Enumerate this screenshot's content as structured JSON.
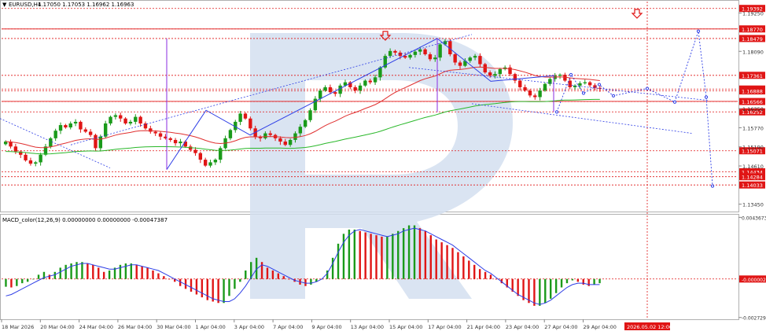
{
  "window": {
    "symbol_label": "EURUSD,H4",
    "ohlc_text": "1.17050 1.17053 1.16962 1.16963",
    "indicator_label": "MACD_color(12,26,9) 0.00000000 0.00000000 -0.00047387"
  },
  "colors": {
    "bull": "#1a9a1a",
    "bear": "#e01515",
    "ma_fast": "#e03030",
    "ma_slow": "#2ab82a",
    "trend": "#2e3ee6",
    "level": "#e01515",
    "badge": "#e01515",
    "watermark": "#d4dff0"
  },
  "chart_data": [
    {
      "type": "candlestick",
      "title": "EURUSD,H4",
      "x_tick_labels": [
        "18 Mar 2026",
        "20 Mar 04:00",
        "24 Mar 04:00",
        "26 Mar 04:00",
        "30 Mar 04:00",
        "1 Apr 04:00",
        "3 Apr 04:00",
        "7 Apr 04:00",
        "9 Apr 04:00",
        "13 Apr 04:00",
        "15 Apr 04:00",
        "17 Apr 04:00",
        "21 Apr 04:00",
        "23 Apr 04:00",
        "27 Apr 04:00",
        "29 Apr 04:00"
      ],
      "forecast_date_label": "2026.05.02 12:00",
      "ylim": [
        1.1325,
        1.196
      ],
      "y_tick_labels": [
        "1.19250",
        "1.18090",
        "1.16350",
        "1.15770",
        "1.15190",
        "1.14610",
        "1.13450"
      ],
      "price_levels": [
        "1.19392",
        "1.18770",
        "1.18479",
        "1.17361",
        "1.16945",
        "1.16888",
        "1.16566",
        "1.16252",
        "1.15071",
        "1.14434",
        "1.14284",
        "1.14033"
      ],
      "closes": [
        1.1535,
        1.152,
        1.1505,
        1.1495,
        1.1478,
        1.1468,
        1.1472,
        1.1495,
        1.152,
        1.1545,
        1.1568,
        1.1585,
        1.1578,
        1.159,
        1.1595,
        1.1572,
        1.1565,
        1.1555,
        1.1515,
        1.155,
        1.159,
        1.161,
        1.1615,
        1.1605,
        1.159,
        1.1595,
        1.161,
        1.159,
        1.1575,
        1.1565,
        1.156,
        1.155,
        1.1545,
        1.154,
        1.153,
        1.1535,
        1.152,
        1.151,
        1.15,
        1.148,
        1.1462,
        1.1472,
        1.148,
        1.1515,
        1.1545,
        1.157,
        1.1595,
        1.162,
        1.1605,
        1.1575,
        1.155,
        1.1545,
        1.156,
        1.1555,
        1.1545,
        1.1535,
        1.1525,
        1.154,
        1.156,
        1.158,
        1.16,
        1.163,
        1.1665,
        1.169,
        1.17,
        1.1685,
        1.168,
        1.1705,
        1.1715,
        1.17,
        1.169,
        1.1705,
        1.172,
        1.1715,
        1.173,
        1.176,
        1.1795,
        1.181,
        1.1805,
        1.1795,
        1.179,
        1.1798,
        1.1808,
        1.1815,
        1.18,
        1.1785,
        1.179,
        1.183,
        1.184,
        1.18,
        1.1775,
        1.1765,
        1.178,
        1.179,
        1.1795,
        1.177,
        1.1745,
        1.1735,
        1.174,
        1.1755,
        1.176,
        1.174,
        1.172,
        1.17,
        1.169,
        1.1675,
        1.167,
        1.169,
        1.171,
        1.1725,
        1.1735,
        1.1738,
        1.172,
        1.17,
        1.1705,
        1.1712,
        1.1715,
        1.1706,
        1.1698,
        1.1696
      ],
      "forecast_path": [
        1.1625,
        1.1738,
        1.1682,
        1.1708,
        1.1674,
        1.1696,
        1.1655,
        1.187,
        1.167,
        1.14
      ],
      "macd": {
        "values": [
          -0.00055,
          -0.0006,
          -0.0005,
          -0.0003,
          -0.0002,
          0.0,
          0.0003,
          0.0005,
          0.0003,
          0.0005,
          0.0008,
          0.001,
          0.0011,
          0.0012,
          0.0012,
          0.0011,
          0.001,
          0.0008,
          0.0005,
          0.0006,
          0.0008,
          0.001,
          0.0011,
          0.0011,
          0.001,
          0.0009,
          0.0008,
          0.0006,
          0.0004,
          0.0002,
          0.0,
          -0.0002,
          -0.0005,
          -0.0007,
          -0.0009,
          -0.0011,
          -0.0013,
          -0.0015,
          -0.0016,
          -0.0017,
          -0.0017,
          -0.0012,
          -0.0007,
          -0.0002,
          0.0006,
          0.0012,
          0.0015,
          0.0012,
          0.0008,
          0.0006,
          0.0004,
          0.0002,
          0.0,
          -0.0002,
          -0.0004,
          -0.0005,
          -0.0004,
          -0.0002,
          0.0,
          0.0006,
          0.0015,
          0.0025,
          0.0032,
          0.0035,
          0.0035,
          0.0034,
          0.0033,
          0.0032,
          0.0031,
          0.003,
          0.003,
          0.0032,
          0.0034,
          0.0036,
          0.0038,
          0.0038,
          0.0036,
          0.0034,
          0.0031,
          0.0028,
          0.0026,
          0.0024,
          0.0022,
          0.0019,
          0.0016,
          0.0013,
          0.001,
          0.0007,
          0.0005,
          0.0003,
          0.0,
          -0.0003,
          -0.0006,
          -0.0009,
          -0.0012,
          -0.0015,
          -0.0017,
          -0.0019,
          -0.0019,
          -0.0017,
          -0.0014,
          -0.001,
          -0.0006,
          -0.0003,
          -0.0001,
          -0.0002,
          -0.0004,
          -0.0005,
          -0.0004,
          -0.0003
        ],
        "signal": [
          -0.0012,
          -0.0011,
          -0.0009,
          -0.0007,
          -0.0005,
          -0.0003,
          -0.0001,
          0.0001,
          0.0002,
          0.0003,
          0.0005,
          0.0007,
          0.0009,
          0.001,
          0.0011,
          0.0011,
          0.001,
          0.0009,
          0.0008,
          0.0007,
          0.0007,
          0.0008,
          0.0009,
          0.001,
          0.001,
          0.0009,
          0.0008,
          0.0007,
          0.0006,
          0.0004,
          0.0002,
          0.0,
          -0.0002,
          -0.0004,
          -0.0006,
          -0.0008,
          -0.001,
          -0.0012,
          -0.0014,
          -0.0015,
          -0.0016,
          -0.0016,
          -0.0014,
          -0.001,
          -0.0005,
          0.0001,
          0.0007,
          0.001,
          0.0009,
          0.0007,
          0.0005,
          0.0003,
          0.0001,
          -0.0001,
          -0.0002,
          -0.0003,
          -0.0003,
          -0.0002,
          0.0,
          0.0004,
          0.0011,
          0.0019,
          0.0026,
          0.0031,
          0.0034,
          0.0035,
          0.0034,
          0.0033,
          0.0032,
          0.0031,
          0.003,
          0.0031,
          0.0032,
          0.0034,
          0.0035,
          0.0036,
          0.0035,
          0.0034,
          0.0032,
          0.003,
          0.0028,
          0.0026,
          0.0024,
          0.0021,
          0.0018,
          0.0015,
          0.0012,
          0.0009,
          0.0006,
          0.0004,
          0.0001,
          -0.0002,
          -0.0005,
          -0.0008,
          -0.0011,
          -0.0013,
          -0.0015,
          -0.0017,
          -0.0018,
          -0.0017,
          -0.0015,
          -0.0012,
          -0.0009,
          -0.0006,
          -0.0004,
          -0.0003,
          -0.0003,
          -0.0004,
          -0.0004,
          -0.0004
        ],
        "ylim": [
          -0.0028,
          0.0045
        ],
        "y_tick_labels": [
          "0.0043673",
          "-0.0000026",
          "-0.0027294"
        ]
      }
    }
  ]
}
